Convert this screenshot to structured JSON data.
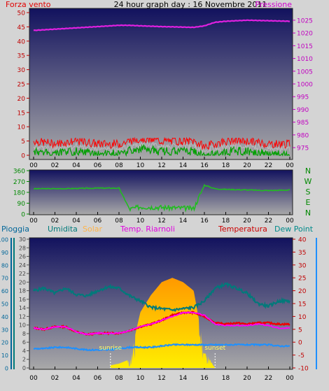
{
  "header": {
    "wind_label": "Forza vento",
    "title": "24 hour graph day : 16 Novembre 2011",
    "pressure_label": "Pressione"
  },
  "middle": {
    "compass_labels": [
      "N",
      "W",
      "S",
      "E",
      "N"
    ]
  },
  "bottom": {
    "legend": {
      "rain": "Pioggia",
      "humidity": "Umidita",
      "solar": "Solar",
      "heat_index": "Temp. Riarnoli",
      "temperature": "Temperatura",
      "dew_point": "Dew Point"
    },
    "sunrise": "sunrise",
    "sunset": "sunset"
  },
  "colors": {
    "background": "#d4d4d4",
    "plot_top": "#12125e",
    "plot_bottom": "#a9a9a9",
    "wind_gust": "#ff0000",
    "wind_avg": "#00a000",
    "wind_mid": "#c0c0c0",
    "pressure": "#e020e0",
    "direction": "#22bb22",
    "rain_axis": "#006699",
    "humidity": "#007a7a",
    "solar": "#ffe000",
    "heat_index": "#ff00ff",
    "temperature": "#ee0000",
    "dew_point": "#1e90ff"
  },
  "chart_data": [
    {
      "type": "line",
      "xticks": [
        "00",
        "02",
        "04",
        "06",
        "08",
        "10",
        "12",
        "14",
        "16",
        "18",
        "20",
        "22",
        "00"
      ],
      "x": [
        0,
        2,
        4,
        6,
        8,
        9,
        10,
        12,
        14,
        15,
        16,
        17,
        18,
        20,
        22,
        24
      ],
      "series": [
        {
          "name": "Forza vento",
          "axis": "left",
          "values": [
            4,
            3,
            4,
            3,
            3,
            4,
            5,
            4,
            4,
            4,
            2,
            3,
            4,
            4,
            3,
            3
          ]
        },
        {
          "name": "Pressione",
          "axis": "right",
          "values": [
            1021,
            1021.5,
            1022,
            1022.5,
            1023,
            1023,
            1022.8,
            1022.5,
            1022.3,
            1022.2,
            1022.8,
            1024.2,
            1024.6,
            1025,
            1024.8,
            1024.6
          ]
        }
      ],
      "ylim_left": [
        0,
        50
      ],
      "yticks_left": [
        0,
        5,
        10,
        15,
        20,
        25,
        30,
        35,
        40,
        45,
        50
      ],
      "ylim_right": [
        972,
        1028
      ],
      "yticks_right": [
        975,
        980,
        985,
        990,
        995,
        1000,
        1005,
        1010,
        1015,
        1020,
        1025
      ]
    },
    {
      "type": "line",
      "xticks": [
        "00",
        "02",
        "04",
        "06",
        "08",
        "10",
        "12",
        "14",
        "16",
        "18",
        "20",
        "22",
        "00"
      ],
      "x": [
        0,
        2,
        4,
        6,
        8,
        9,
        10,
        12,
        14,
        15,
        16,
        17,
        18,
        20,
        22,
        24
      ],
      "series": [
        {
          "name": "direction",
          "values": [
            210,
            210,
            212,
            215,
            215,
            40,
            60,
            55,
            50,
            45,
            240,
            210,
            205,
            200,
            195,
            200
          ]
        }
      ],
      "ylim": [
        0,
        360
      ],
      "yticks": [
        0,
        90,
        180,
        270,
        360
      ]
    },
    {
      "type": "line",
      "xticks": [
        "00",
        "02",
        "04",
        "06",
        "08",
        "10",
        "12",
        "14",
        "16",
        "18",
        "20",
        "22",
        "00"
      ],
      "x": [
        0,
        1,
        2,
        3,
        4,
        5,
        6,
        7,
        8,
        9,
        10,
        11,
        12,
        13,
        14,
        15,
        16,
        17,
        18,
        19,
        20,
        21,
        22,
        23,
        24
      ],
      "series": [
        {
          "name": "Umidita",
          "axis": "pioggia",
          "values": [
            60,
            62,
            58,
            62,
            57,
            56,
            60,
            63,
            62,
            56,
            52,
            47,
            46,
            45,
            46,
            47,
            52,
            62,
            65,
            62,
            58,
            50,
            48,
            52,
            52
          ]
        },
        {
          "name": "Temp. Riarnoli",
          "axis": "temperature",
          "values": [
            5.5,
            5,
            6,
            6,
            4,
            3,
            3.5,
            3.5,
            3.5,
            4.5,
            6,
            7,
            8.5,
            10,
            11.5,
            11.5,
            10.5,
            7,
            6.5,
            6.5,
            6.5,
            7,
            6.5,
            5.5,
            5.5
          ]
        },
        {
          "name": "Temperatura",
          "axis": "temperature",
          "values": [
            5.5,
            5,
            6,
            6,
            4,
            3,
            3.5,
            3.5,
            3.5,
            4.5,
            6,
            7,
            8.5,
            10.5,
            11.5,
            11.5,
            10,
            7.5,
            7,
            7.5,
            7,
            7.5,
            7.5,
            7,
            7
          ]
        },
        {
          "name": "Dew Point",
          "axis": "temperature",
          "values": [
            -2.5,
            -2.5,
            -2,
            -2,
            -2.5,
            -3,
            -3,
            -3,
            -2.5,
            -2,
            -2,
            -2,
            -1.5,
            -1,
            -1,
            -1,
            -1,
            -1,
            -1,
            -1,
            -1,
            -1,
            -1,
            -1.5,
            -1.5
          ]
        },
        {
          "name": "Solar",
          "axis": "solar",
          "values": [
            0,
            0,
            0,
            0,
            0,
            0,
            0,
            0.5,
            1,
            2,
            13,
            17,
            20,
            21,
            20,
            18,
            4,
            0,
            0,
            0,
            0,
            0,
            0,
            0,
            0
          ]
        }
      ],
      "ylim_pioggia": [
        0,
        100
      ],
      "yticks_pioggia": [
        0,
        10,
        20,
        30,
        40,
        50,
        60,
        70,
        80,
        90,
        100
      ],
      "ylim_solar": [
        0,
        30
      ],
      "yticks_solar": [
        0,
        2,
        4,
        6,
        8,
        10,
        12,
        14,
        16,
        18,
        20,
        22,
        24,
        26,
        28,
        30
      ],
      "ylim_temperature": [
        -10,
        40
      ],
      "yticks_temperature": [
        -10,
        -5,
        0,
        5,
        10,
        15,
        20,
        25,
        30,
        35,
        40
      ],
      "sunrise_hour": 7.2,
      "sunset_hour": 17.0
    }
  ]
}
